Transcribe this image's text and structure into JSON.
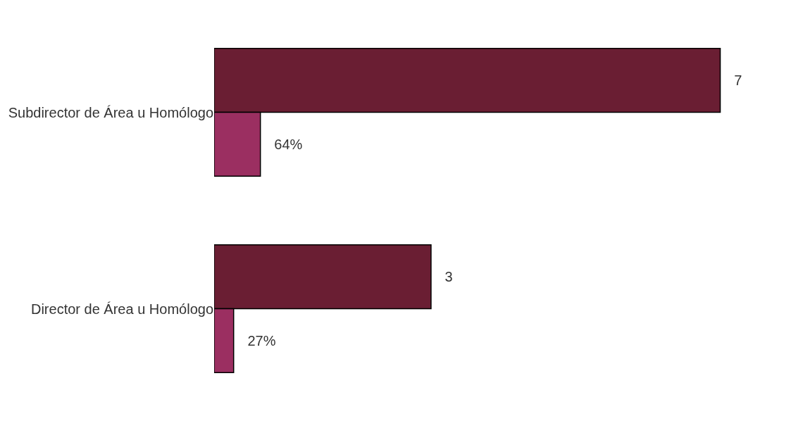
{
  "chart_data": {
    "type": "bar",
    "orientation": "horizontal",
    "categories": [
      "Subdirector de Área u Homólogo",
      "Director de Área u Homólogo"
    ],
    "series": [
      {
        "color": "#6a1e33",
        "values": [
          7,
          3
        ],
        "value_labels": [
          "7",
          "3"
        ]
      },
      {
        "color": "#9b2f61",
        "values": [
          0.64,
          0.27
        ],
        "value_labels": [
          "64%",
          "27%"
        ]
      }
    ]
  }
}
